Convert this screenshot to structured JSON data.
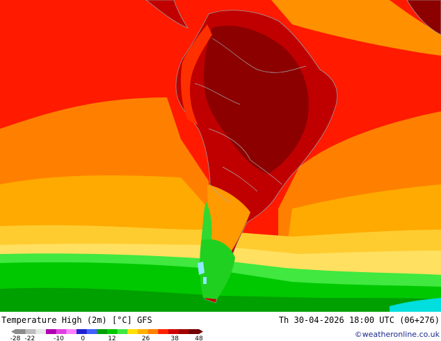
{
  "map": {
    "title": "Temperature High (2m) [°C] GFS",
    "datetime": "Th 30-04-2026 18:00 UTC (06+276)",
    "credit": "©weatheronline.co.uk",
    "legend": {
      "ticks": [
        "-28",
        "-22",
        "-10",
        "0",
        "12",
        "26",
        "38",
        "48"
      ],
      "colors": [
        "#8c8c8c",
        "#bdbdbd",
        "#e6e6e6",
        "#b000b0",
        "#e040e0",
        "#ff80ff",
        "#2020d0",
        "#4060ff",
        "#00a000",
        "#00c800",
        "#40e840",
        "#ffe000",
        "#ffb000",
        "#ff8000",
        "#ff2000",
        "#d00000",
        "#a00000",
        "#700000"
      ]
    },
    "palette": {
      "sea_warm": "#ff2000",
      "sea_orange": "#ff8c00",
      "sea_amber": "#ffb000",
      "sea_yellow": "#ffd040",
      "green_dark": "#00b400",
      "green_light": "#20e020",
      "land_hot": "#b40000",
      "land_dark": "#8c0000",
      "cyan": "#00e0e0"
    }
  }
}
